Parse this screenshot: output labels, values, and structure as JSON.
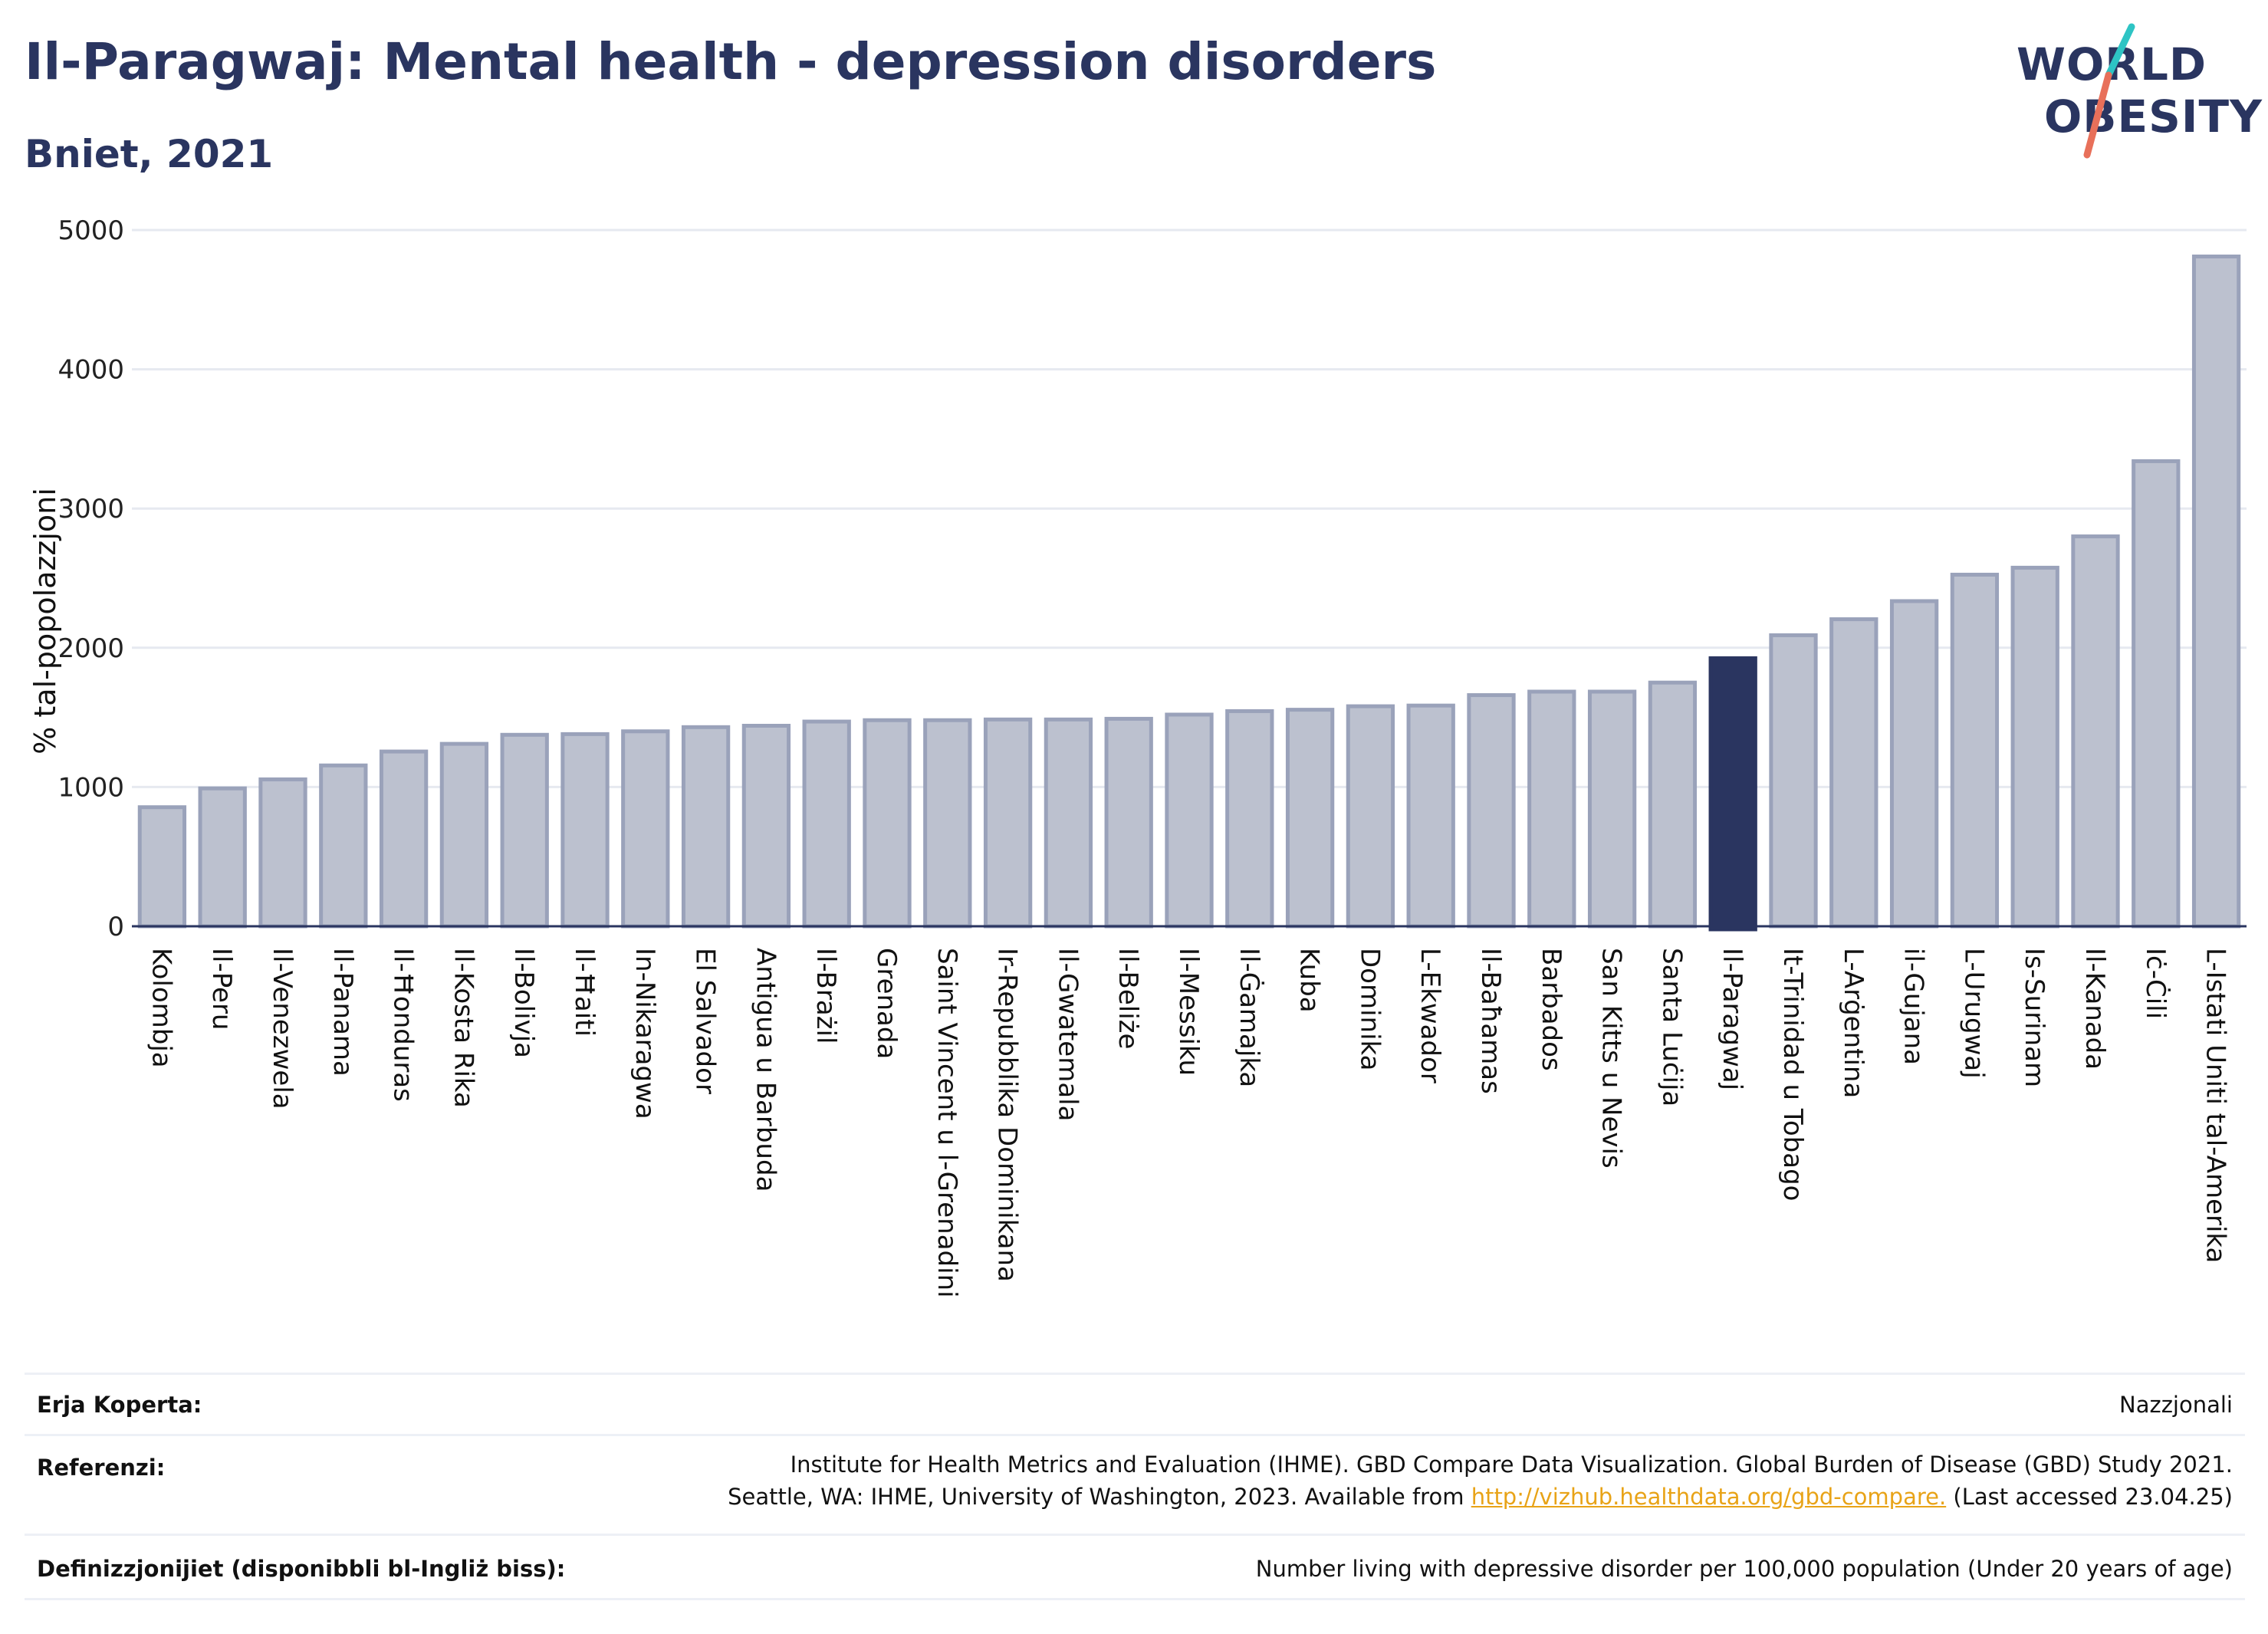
{
  "title": "Il-Paragwaj: Mental health - depression disorders",
  "subtitle": "Bniet, 2021",
  "logo": {
    "line1": "WORLD",
    "line2": "OBESITY",
    "accent_colors": [
      "#2ec4c4",
      "#e8705a"
    ]
  },
  "colors": {
    "bar": "#bcc1cf",
    "bar_border": "#9aa2ba",
    "highlight": "#2a3560",
    "grid": "#e6e9f0",
    "axis": "#2a3560"
  },
  "chart_data": {
    "type": "bar",
    "title": "Il-Paragwaj: Mental health - depression disorders",
    "subtitle": "Bniet, 2021",
    "ylabel": "% tal-popolazzjoni",
    "ylim": [
      0,
      5000
    ],
    "yticks": [
      0,
      1000,
      2000,
      3000,
      4000,
      5000
    ],
    "grid": true,
    "highlight": "Il-Paragwaj",
    "categories": [
      "Kolombja",
      "Il-Peru",
      "Il-Venezwela",
      "Il-Panama",
      "Il-Ħonduras",
      "Il-Kosta Rika",
      "Il-Bolivja",
      "Il-Ħaiti",
      "In-Nikaragwa",
      "El Salvador",
      "Antigua u Barbuda",
      "Il-Brażil",
      "Grenada",
      "Saint Vincent u l-Grenadini",
      "Ir-Repubblika Dominikana",
      "Il-Gwatemala",
      "Il-Beliże",
      "Il-Messiku",
      "Il-Ġamajka",
      "Kuba",
      "Dominika",
      "L-Ekwador",
      "Il-Baħamas",
      "Barbados",
      "San Kitts u Nevis",
      "Santa Luċija",
      "Il-Paragwaj",
      "It-Trinidad u Tobago",
      "L-Arġentina",
      "il-Gujana",
      "L-Urugwaj",
      "Is-Surinam",
      "Il-Kanada",
      "Iċ-Ċili",
      "L-Istati Uniti tal-Amerika"
    ],
    "values": [
      855,
      990,
      1055,
      1155,
      1255,
      1310,
      1375,
      1380,
      1400,
      1430,
      1440,
      1470,
      1480,
      1480,
      1485,
      1485,
      1490,
      1520,
      1545,
      1555,
      1580,
      1585,
      1660,
      1685,
      1685,
      1750,
      1925,
      2090,
      2205,
      2335,
      2525,
      2575,
      2800,
      3340,
      4810
    ]
  },
  "footer": {
    "coverage_label": "Erja Koperta:",
    "coverage_value": "Nazzjonali",
    "references_label": "Referenzi:",
    "references_line1": "Institute for Health Metrics and Evaluation (IHME). GBD Compare Data Visualization. Global Burden of Disease (GBD) Study 2021.",
    "references_line2_pre": "Seattle, WA: IHME, University of Washington, 2023. Available from",
    "references_link": "http://vizhub.healthdata.org/gbd-compare.",
    "references_line2_post": "(Last accessed 23.04.25)",
    "definitions_label": "Definizzjonijiet (disponibbli bl-Ingliż biss):",
    "definitions_value": "Number living with depressive disorder per 100,000 population (Under 20 years of age)"
  }
}
